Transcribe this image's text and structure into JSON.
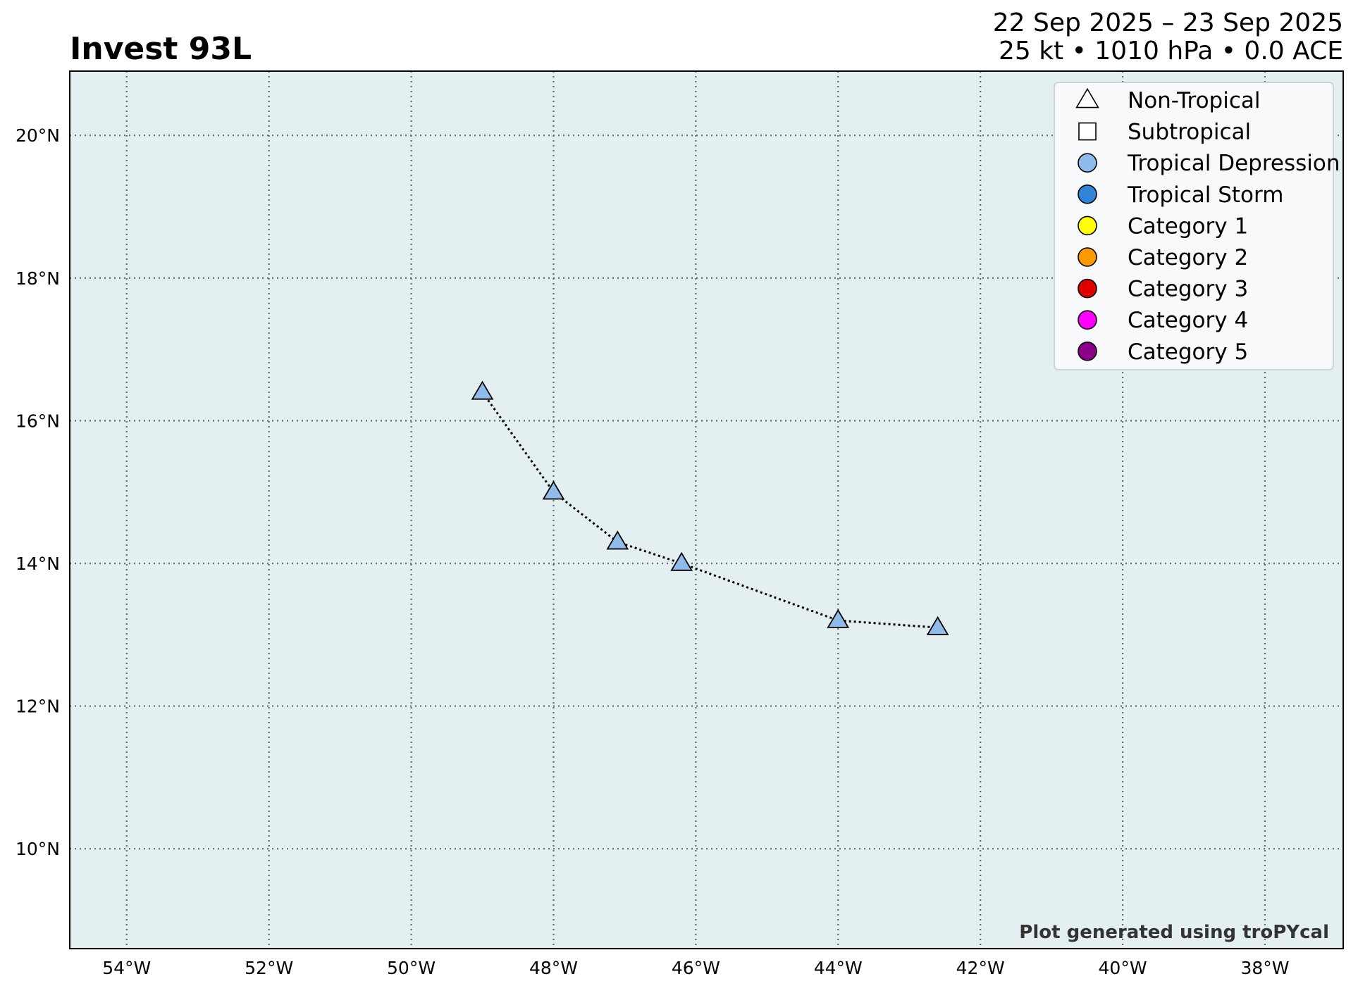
{
  "title": "Invest 93L",
  "subtitle_line1": "22 Sep 2025 – 23 Sep 2025",
  "subtitle_line2": "25 kt • 1010 hPa • 0.0 ACE",
  "credit": "Plot generated using troPYcal",
  "colors": {
    "ocean": "#e4eff1",
    "gridline": "#5f6b6e",
    "track_marker": "#8fbceb",
    "marker_edge": "#000000"
  },
  "legend": {
    "placement": "top-right",
    "items": [
      {
        "label": "Non-Tropical",
        "shape": "triangle",
        "color": "#ffffff"
      },
      {
        "label": "Subtropical",
        "shape": "square",
        "color": "#ffffff"
      },
      {
        "label": "Tropical Depression",
        "shape": "circle",
        "color": "#8fbceb"
      },
      {
        "label": "Tropical Storm",
        "shape": "circle",
        "color": "#3184d6"
      },
      {
        "label": "Category 1",
        "shape": "circle",
        "color": "#ffff00"
      },
      {
        "label": "Category 2",
        "shape": "circle",
        "color": "#ff9900"
      },
      {
        "label": "Category 3",
        "shape": "circle",
        "color": "#e10000"
      },
      {
        "label": "Category 4",
        "shape": "circle",
        "color": "#ff00ff"
      },
      {
        "label": "Category 5",
        "shape": "circle",
        "color": "#8a008a"
      }
    ]
  },
  "chart_data": {
    "type": "scatter",
    "xlim": [
      -54.8,
      -36.9
    ],
    "ylim": [
      8.6,
      20.9
    ],
    "grid": true,
    "x_ticks": [
      {
        "value": -54,
        "label": "54°W"
      },
      {
        "value": -52,
        "label": "52°W"
      },
      {
        "value": -50,
        "label": "50°W"
      },
      {
        "value": -48,
        "label": "48°W"
      },
      {
        "value": -46,
        "label": "46°W"
      },
      {
        "value": -44,
        "label": "44°W"
      },
      {
        "value": -42,
        "label": "42°W"
      },
      {
        "value": -40,
        "label": "40°W"
      },
      {
        "value": -38,
        "label": "38°W"
      }
    ],
    "y_ticks": [
      {
        "value": 10,
        "label": "10°N"
      },
      {
        "value": 12,
        "label": "12°N"
      },
      {
        "value": 14,
        "label": "14°N"
      },
      {
        "value": 16,
        "label": "16°N"
      },
      {
        "value": 18,
        "label": "18°N"
      },
      {
        "value": 20,
        "label": "20°N"
      }
    ],
    "track": {
      "marker": "triangle",
      "points": [
        {
          "lon": -49.0,
          "lat": 16.4
        },
        {
          "lon": -48.0,
          "lat": 15.0
        },
        {
          "lon": -47.1,
          "lat": 14.3
        },
        {
          "lon": -46.2,
          "lat": 14.0
        },
        {
          "lon": -44.0,
          "lat": 13.2
        },
        {
          "lon": -42.6,
          "lat": 13.1
        }
      ]
    }
  }
}
